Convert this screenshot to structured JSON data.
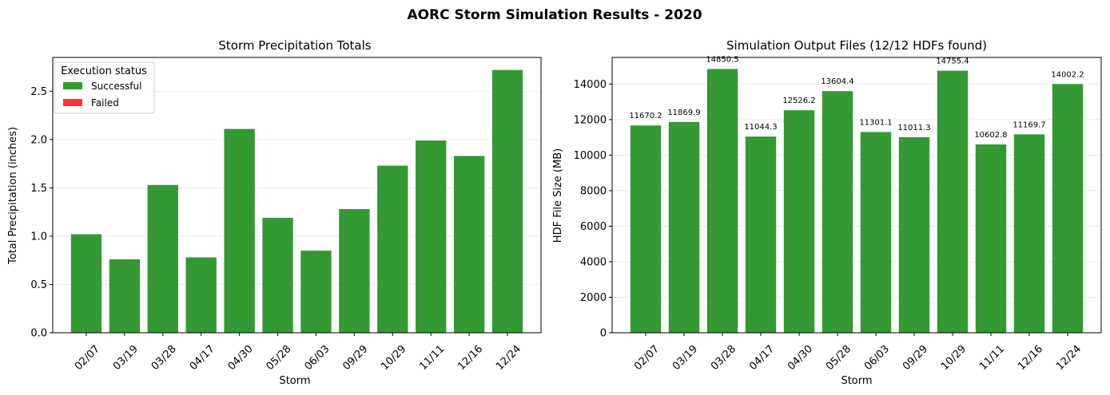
{
  "figure": {
    "title": "AORC Storm Simulation Results - 2020"
  },
  "colors": {
    "successful": "#339933",
    "failed": "#ff3333",
    "grid": "#e6e6e6",
    "axis": "#000000"
  },
  "chart_data": [
    {
      "type": "bar",
      "title": "Storm Precipitation Totals",
      "xlabel": "Storm",
      "ylabel": "Total Precipitation (inches)",
      "categories": [
        "02/07",
        "03/19",
        "03/28",
        "04/17",
        "04/30",
        "05/28",
        "06/03",
        "09/29",
        "10/29",
        "11/11",
        "12/16",
        "12/24"
      ],
      "values": [
        1.02,
        0.76,
        1.53,
        0.78,
        2.11,
        1.19,
        0.85,
        1.28,
        1.73,
        1.99,
        1.83,
        2.72
      ],
      "ylim": [
        0,
        2.85
      ],
      "yticks": [
        0.0,
        0.5,
        1.0,
        1.5,
        2.0,
        2.5
      ],
      "ytick_labels": [
        "0.0",
        "0.5",
        "1.0",
        "1.5",
        "2.0",
        "2.5"
      ],
      "grid": "y",
      "legend": {
        "title": "Execution status",
        "position": "upper-left",
        "entries": [
          {
            "label": "Successful",
            "color": "#339933"
          },
          {
            "label": "Failed",
            "color": "#ff3333"
          }
        ]
      },
      "bar_color": "#339933"
    },
    {
      "type": "bar",
      "title": "Simulation Output Files (12/12 HDFs found)",
      "xlabel": "Storm",
      "ylabel": "HDF File Size (MB)",
      "categories": [
        "02/07",
        "03/19",
        "03/28",
        "04/17",
        "04/30",
        "05/28",
        "06/03",
        "09/29",
        "10/29",
        "11/11",
        "12/16",
        "12/24"
      ],
      "values": [
        11670.2,
        11869.9,
        14850.5,
        11044.3,
        12526.2,
        13604.4,
        11301.1,
        11011.3,
        14755.4,
        10602.8,
        11169.7,
        14002.2
      ],
      "data_labels": [
        "11670.2",
        "11869.9",
        "14850.5",
        "11044.3",
        "12526.2",
        "13604.4",
        "11301.1",
        "11011.3",
        "14755.4",
        "10602.8",
        "11169.7",
        "14002.2"
      ],
      "ylim": [
        0,
        15500
      ],
      "yticks": [
        0,
        2000,
        4000,
        6000,
        8000,
        10000,
        12000,
        14000
      ],
      "ytick_labels": [
        "0",
        "2000",
        "4000",
        "6000",
        "8000",
        "10000",
        "12000",
        "14000"
      ],
      "grid": "y",
      "bar_color": "#339933"
    }
  ]
}
